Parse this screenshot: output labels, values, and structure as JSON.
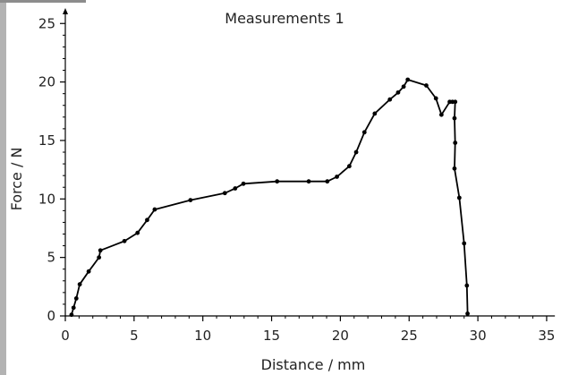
{
  "chart_data": {
    "type": "line",
    "title": "Measurements 1",
    "xlabel": "Distance / mm",
    "ylabel": "Force / N",
    "xlim": [
      0,
      35
    ],
    "ylim": [
      0,
      26
    ],
    "xticks": [
      0,
      5,
      10,
      15,
      20,
      25,
      30,
      35
    ],
    "yticks": [
      0,
      5,
      10,
      15,
      20,
      25
    ],
    "grid": false,
    "series": [
      {
        "color": "#000000",
        "marker": "dot",
        "x": [
          0.45,
          0.6,
          0.8,
          1.05,
          1.7,
          2.45,
          2.55,
          4.3,
          5.25,
          5.95,
          6.5,
          9.1,
          11.6,
          12.35,
          12.95,
          15.4,
          17.7,
          19.05,
          19.75,
          20.65,
          21.15,
          21.75,
          22.5,
          23.6,
          24.2,
          24.6,
          24.9,
          26.25,
          26.95,
          27.35,
          27.95,
          28.15,
          28.35,
          28.3,
          28.35,
          28.3,
          28.65,
          29.0,
          29.2,
          29.25
        ],
        "y": [
          0.1,
          0.7,
          1.5,
          2.7,
          3.8,
          5.0,
          5.6,
          6.4,
          7.1,
          8.2,
          9.1,
          9.9,
          10.5,
          10.9,
          11.3,
          11.5,
          11.5,
          11.5,
          11.9,
          12.8,
          14.0,
          15.7,
          17.3,
          18.5,
          19.1,
          19.6,
          20.2,
          19.7,
          18.6,
          17.2,
          18.3,
          18.3,
          18.3,
          16.9,
          14.8,
          12.6,
          10.1,
          6.2,
          2.6,
          0.2
        ]
      }
    ]
  }
}
